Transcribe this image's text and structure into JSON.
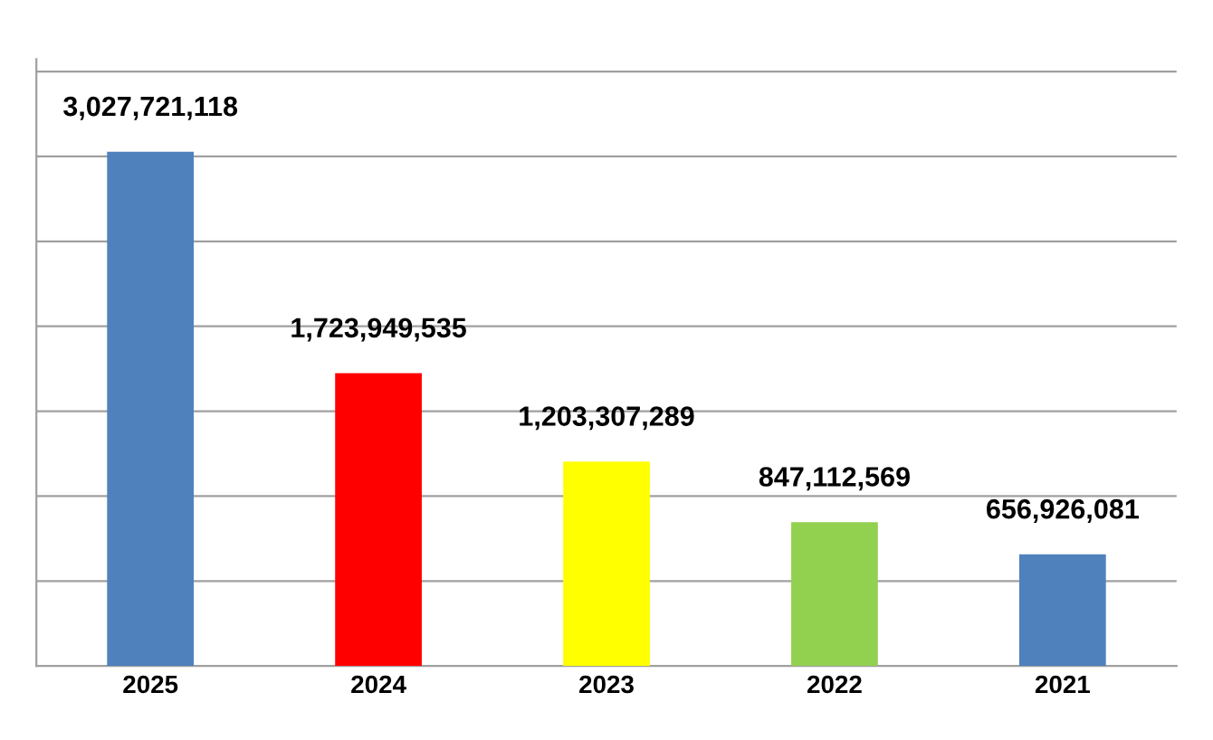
{
  "chart_data": {
    "type": "bar",
    "categories": [
      "2025",
      "2024",
      "2023",
      "2022",
      "2021"
    ],
    "values": [
      3027721118,
      1723949535,
      1203307289,
      847112569,
      656926081
    ],
    "value_labels": [
      "3,027,721,118",
      "1,723,949,535",
      "1,203,307,289",
      "847,112,569",
      "656,926,081"
    ],
    "colors": [
      "#4f81bd",
      "#ff0000",
      "#ffff00",
      "#92d050",
      "#4f81bd"
    ],
    "tick_labels": "x",
    "grid": "y"
  }
}
